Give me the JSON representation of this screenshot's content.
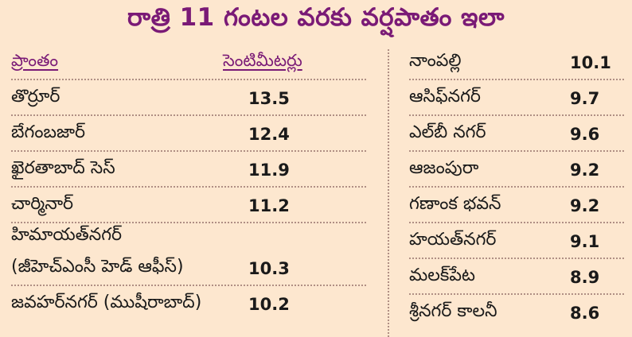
{
  "title": "రాత్రి 11 గంటల వరకు వర్షపాతం ఇలా",
  "header": {
    "area": "ప్రాంతం",
    "unit": "సెంటిమీటర్లు"
  },
  "left_rows": [
    {
      "area": "తొర్రూర్",
      "value": "13.5"
    },
    {
      "area": "బేగంబజార్",
      "value": "12.4"
    },
    {
      "area": "ఖైరతాబాద్ సెస్",
      "value": "11.9"
    },
    {
      "area": "చార్మినార్",
      "value": "11.2"
    },
    {
      "area": "హిమాయత్‌నగర్",
      "value": ""
    },
    {
      "area": "(జీహెచ్‌ఎంసీ హెడ్ ఆఫీస్)",
      "value": "10.3"
    },
    {
      "area": "జవహర్‌నగర్ (ముషీరాబాద్)",
      "value": "10.2"
    }
  ],
  "right_rows": [
    {
      "area": "నాంపల్లి",
      "value": "10.1"
    },
    {
      "area": "ఆసిఫ్‌నగర్",
      "value": "9.7"
    },
    {
      "area": "ఎల్‌బీ నగర్",
      "value": "9.6"
    },
    {
      "area": "ఆజంపురా",
      "value": "9.2"
    },
    {
      "area": "గణాంక భవన్",
      "value": "9.2"
    },
    {
      "area": "హయత్‌నగర్",
      "value": "9.1"
    },
    {
      "area": "మలక్‌పేట",
      "value": "8.9"
    },
    {
      "area": "శ్రీనగర్ కాలనీ",
      "value": "8.6"
    }
  ]
}
